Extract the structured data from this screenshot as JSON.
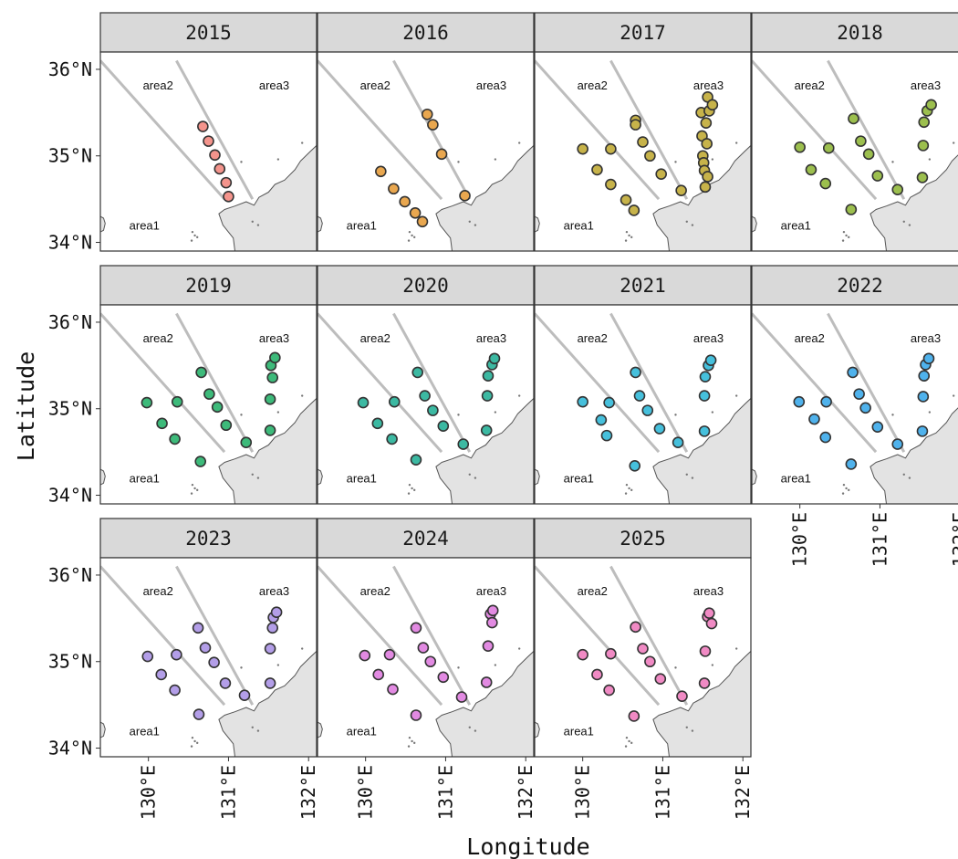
{
  "chart_data": {
    "type": "scatter",
    "xlabel": "Longitude",
    "ylabel": "Latitude",
    "xlim": [
      129.4,
      132.1
    ],
    "ylim": [
      33.9,
      36.2
    ],
    "x_ticks": [
      {
        "value": 130,
        "label": "130°E"
      },
      {
        "value": 131,
        "label": "131°E"
      },
      {
        "value": 132,
        "label": "132°E"
      }
    ],
    "y_ticks": [
      {
        "value": 34,
        "label": "34°N"
      },
      {
        "value": 35,
        "label": "35°N"
      },
      {
        "value": 36,
        "label": "36°N"
      }
    ],
    "area_labels": [
      "area1",
      "area2",
      "area3"
    ],
    "grid": false,
    "legend": "none",
    "panels": [
      {
        "title": "2015",
        "color": "#f4948c",
        "points": [
          [
            130.68,
            35.34
          ],
          [
            130.75,
            35.17
          ],
          [
            130.83,
            35.01
          ],
          [
            130.89,
            34.85
          ],
          [
            130.97,
            34.69
          ],
          [
            131.0,
            34.53
          ]
        ]
      },
      {
        "title": "2016",
        "color": "#e9a74f",
        "points": [
          [
            130.19,
            34.82
          ],
          [
            130.35,
            34.62
          ],
          [
            130.49,
            34.47
          ],
          [
            130.62,
            34.34
          ],
          [
            130.71,
            34.24
          ],
          [
            130.77,
            35.48
          ],
          [
            130.84,
            35.36
          ],
          [
            130.95,
            35.02
          ],
          [
            131.24,
            34.54
          ]
        ]
      },
      {
        "title": "2017",
        "color": "#c7b34a",
        "points": [
          [
            130.0,
            35.08
          ],
          [
            130.18,
            34.84
          ],
          [
            130.35,
            34.67
          ],
          [
            130.35,
            35.08
          ],
          [
            130.54,
            34.49
          ],
          [
            130.64,
            34.37
          ],
          [
            130.66,
            35.41
          ],
          [
            130.66,
            35.36
          ],
          [
            130.75,
            35.16
          ],
          [
            130.84,
            35.0
          ],
          [
            130.98,
            34.79
          ],
          [
            131.23,
            34.6
          ],
          [
            131.48,
            35.5
          ],
          [
            131.49,
            35.23
          ],
          [
            131.5,
            35.0
          ],
          [
            131.51,
            34.92
          ],
          [
            131.52,
            34.83
          ],
          [
            131.53,
            34.64
          ],
          [
            131.54,
            35.38
          ],
          [
            131.55,
            35.14
          ],
          [
            131.56,
            34.76
          ],
          [
            131.56,
            35.68
          ],
          [
            131.58,
            35.52
          ],
          [
            131.62,
            35.59
          ]
        ]
      },
      {
        "title": "2018",
        "color": "#9cbf4e",
        "points": [
          [
            130.0,
            35.1
          ],
          [
            130.14,
            34.84
          ],
          [
            130.32,
            34.68
          ],
          [
            130.36,
            35.09
          ],
          [
            130.64,
            34.38
          ],
          [
            130.67,
            35.43
          ],
          [
            130.76,
            35.17
          ],
          [
            130.86,
            35.02
          ],
          [
            130.97,
            34.77
          ],
          [
            131.22,
            34.61
          ],
          [
            131.53,
            34.75
          ],
          [
            131.54,
            35.12
          ],
          [
            131.55,
            35.39
          ],
          [
            131.59,
            35.52
          ],
          [
            131.64,
            35.59
          ]
        ]
      },
      {
        "title": "2019",
        "color": "#3dba7a",
        "points": [
          [
            129.98,
            35.07
          ],
          [
            130.17,
            34.83
          ],
          [
            130.33,
            34.65
          ],
          [
            130.36,
            35.08
          ],
          [
            130.65,
            34.39
          ],
          [
            130.66,
            35.42
          ],
          [
            130.76,
            35.17
          ],
          [
            130.86,
            35.02
          ],
          [
            130.97,
            34.81
          ],
          [
            131.22,
            34.61
          ],
          [
            131.52,
            34.75
          ],
          [
            131.52,
            35.11
          ],
          [
            131.53,
            35.5
          ],
          [
            131.55,
            35.36
          ],
          [
            131.58,
            35.59
          ]
        ]
      },
      {
        "title": "2020",
        "color": "#3cb9a2",
        "points": [
          [
            129.97,
            35.07
          ],
          [
            130.15,
            34.83
          ],
          [
            130.33,
            34.65
          ],
          [
            130.36,
            35.08
          ],
          [
            130.63,
            34.41
          ],
          [
            130.65,
            35.42
          ],
          [
            130.74,
            35.15
          ],
          [
            130.84,
            34.98
          ],
          [
            130.97,
            34.8
          ],
          [
            131.22,
            34.59
          ],
          [
            131.51,
            34.75
          ],
          [
            131.52,
            35.15
          ],
          [
            131.53,
            35.38
          ],
          [
            131.58,
            35.51
          ],
          [
            131.61,
            35.58
          ]
        ]
      },
      {
        "title": "2021",
        "color": "#46c0dc",
        "points": [
          [
            130.0,
            35.08
          ],
          [
            130.23,
            34.87
          ],
          [
            130.3,
            34.69
          ],
          [
            130.33,
            35.07
          ],
          [
            130.65,
            34.34
          ],
          [
            130.66,
            35.42
          ],
          [
            130.71,
            35.15
          ],
          [
            130.81,
            34.98
          ],
          [
            130.96,
            34.77
          ],
          [
            131.19,
            34.61
          ],
          [
            131.52,
            34.74
          ],
          [
            131.52,
            35.15
          ],
          [
            131.53,
            35.37
          ],
          [
            131.57,
            35.5
          ],
          [
            131.6,
            35.56
          ]
        ]
      },
      {
        "title": "2022",
        "color": "#4fb2ec",
        "points": [
          [
            129.99,
            35.08
          ],
          [
            130.18,
            34.88
          ],
          [
            130.32,
            34.67
          ],
          [
            130.33,
            35.08
          ],
          [
            130.64,
            34.36
          ],
          [
            130.66,
            35.42
          ],
          [
            130.74,
            35.17
          ],
          [
            130.82,
            35.01
          ],
          [
            130.97,
            34.79
          ],
          [
            131.22,
            34.59
          ],
          [
            131.53,
            34.74
          ],
          [
            131.54,
            35.14
          ],
          [
            131.55,
            35.38
          ],
          [
            131.57,
            35.51
          ],
          [
            131.61,
            35.58
          ]
        ]
      },
      {
        "title": "2023",
        "color": "#b39ee8",
        "points": [
          [
            129.99,
            35.06
          ],
          [
            130.16,
            34.85
          ],
          [
            130.33,
            34.67
          ],
          [
            130.35,
            35.08
          ],
          [
            130.63,
            34.39
          ],
          [
            130.62,
            35.39
          ],
          [
            130.71,
            35.16
          ],
          [
            130.82,
            34.99
          ],
          [
            130.96,
            34.75
          ],
          [
            131.2,
            34.61
          ],
          [
            131.52,
            34.75
          ],
          [
            131.52,
            35.15
          ],
          [
            131.55,
            35.39
          ],
          [
            131.56,
            35.51
          ],
          [
            131.6,
            35.57
          ]
        ]
      },
      {
        "title": "2024",
        "color": "#e28ae2",
        "points": [
          [
            129.99,
            35.07
          ],
          [
            130.16,
            34.85
          ],
          [
            130.34,
            34.68
          ],
          [
            130.3,
            35.08
          ],
          [
            130.63,
            34.38
          ],
          [
            130.63,
            35.39
          ],
          [
            130.72,
            35.16
          ],
          [
            130.81,
            35.0
          ],
          [
            130.97,
            34.82
          ],
          [
            131.2,
            34.59
          ],
          [
            131.51,
            34.76
          ],
          [
            131.53,
            35.18
          ],
          [
            131.56,
            35.55
          ],
          [
            131.58,
            35.45
          ],
          [
            131.59,
            35.59
          ]
        ]
      },
      {
        "title": "2025",
        "color": "#f08ac4",
        "points": [
          [
            130.0,
            35.08
          ],
          [
            130.18,
            34.85
          ],
          [
            130.33,
            34.67
          ],
          [
            130.35,
            35.09
          ],
          [
            130.64,
            34.37
          ],
          [
            130.66,
            35.4
          ],
          [
            130.75,
            35.15
          ],
          [
            130.84,
            35.0
          ],
          [
            130.97,
            34.8
          ],
          [
            131.24,
            34.6
          ],
          [
            131.52,
            34.75
          ],
          [
            131.53,
            35.12
          ],
          [
            131.56,
            35.52
          ],
          [
            131.58,
            35.56
          ],
          [
            131.61,
            35.44
          ]
        ]
      }
    ]
  }
}
